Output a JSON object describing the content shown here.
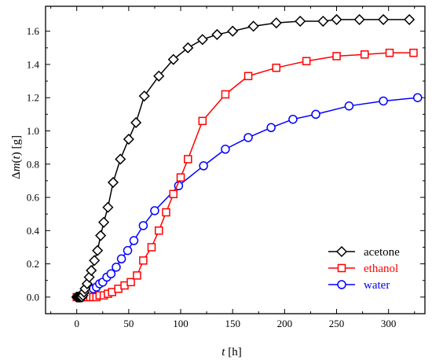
{
  "chart_data": {
    "type": "line",
    "title": "",
    "xlabel_var": "t",
    "xlabel_unit": " [h]",
    "ylabel_prefix": "Δ",
    "ylabel_var": "m",
    "ylabel_paren": "(",
    "ylabel_arg": "t",
    "ylabel_suffix": ") [g]",
    "xlim": [
      -30,
      335
    ],
    "ylim": [
      -0.1,
      1.75
    ],
    "xticks": [
      0,
      50,
      100,
      150,
      200,
      250,
      300
    ],
    "yticks": [
      0.0,
      0.2,
      0.4,
      0.6,
      0.8,
      1.0,
      1.2,
      1.4,
      1.6
    ],
    "ytick_labels": [
      "0.0",
      "0.2",
      "0.4",
      "0.6",
      "0.8",
      "1.0",
      "1.2",
      "1.4",
      "1.6"
    ],
    "legend_position": "bottom-right",
    "series": [
      {
        "name": "acetone",
        "color": "#000000",
        "marker": "diamond",
        "x": [
          0,
          1,
          2,
          3,
          4,
          5,
          6,
          7,
          8,
          10,
          12,
          14,
          17,
          20,
          23,
          26,
          30,
          35,
          42,
          50,
          57,
          65,
          79,
          93,
          107,
          121,
          135,
          150,
          170,
          192,
          215,
          237,
          250,
          272,
          295,
          320
        ],
        "y": [
          0.0,
          0.0,
          0.0,
          0.0,
          0.0,
          0.0,
          0.01,
          0.03,
          0.05,
          0.08,
          0.12,
          0.16,
          0.22,
          0.28,
          0.37,
          0.45,
          0.54,
          0.69,
          0.83,
          0.95,
          1.05,
          1.21,
          1.33,
          1.43,
          1.5,
          1.55,
          1.58,
          1.6,
          1.63,
          1.65,
          1.66,
          1.66,
          1.67,
          1.67,
          1.67,
          1.67
        ]
      },
      {
        "name": "ethanol",
        "color": "#ff0000",
        "marker": "square",
        "x": [
          0,
          2,
          4,
          6,
          8,
          10,
          13,
          16,
          19,
          22,
          26,
          30,
          34,
          40,
          46,
          52,
          58,
          64,
          72,
          79,
          86,
          93,
          100,
          107,
          121,
          143,
          165,
          192,
          221,
          250,
          277,
          301,
          324
        ],
        "y": [
          0.0,
          0.0,
          0.0,
          0.0,
          0.0,
          0.0,
          0.0,
          0.0,
          0.0,
          0.01,
          0.01,
          0.02,
          0.03,
          0.05,
          0.07,
          0.09,
          0.13,
          0.22,
          0.3,
          0.4,
          0.51,
          0.62,
          0.72,
          0.83,
          1.06,
          1.22,
          1.33,
          1.38,
          1.42,
          1.45,
          1.46,
          1.47,
          1.47
        ]
      },
      {
        "name": "water",
        "color": "#0000ff",
        "marker": "circle",
        "x": [
          0,
          2,
          4,
          6,
          8,
          10,
          12,
          14,
          16,
          19,
          22,
          25,
          29,
          33,
          38,
          43,
          49,
          55,
          64,
          75,
          98,
          122,
          143,
          165,
          187,
          208,
          230,
          262,
          295,
          328
        ],
        "y": [
          0.0,
          0.0,
          0.0,
          0.0,
          0.01,
          0.01,
          0.02,
          0.03,
          0.05,
          0.06,
          0.08,
          0.09,
          0.12,
          0.14,
          0.18,
          0.23,
          0.28,
          0.34,
          0.43,
          0.52,
          0.67,
          0.79,
          0.89,
          0.96,
          1.02,
          1.07,
          1.1,
          1.15,
          1.18,
          1.2
        ]
      }
    ]
  }
}
